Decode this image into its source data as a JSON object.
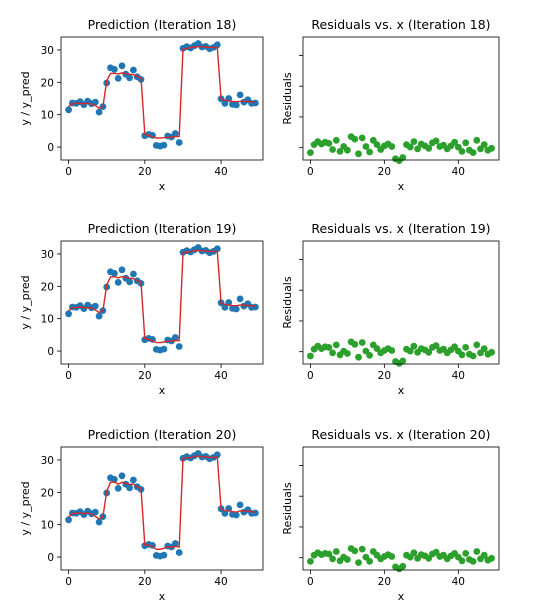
{
  "chart_data": [
    {
      "type": "scatter+line",
      "title": "Prediction (Iteration 18)",
      "xlabel": "x",
      "ylabel": "y / y_pred",
      "xlim": [
        -2,
        51
      ],
      "ylim": [
        -4,
        34
      ],
      "xticks": [
        0,
        20,
        40
      ],
      "yticks": [
        0,
        10,
        20,
        30
      ],
      "series": [
        {
          "kind": "points",
          "color": "#1f77b4",
          "x": [
            0,
            1,
            2,
            3,
            4,
            5,
            6,
            7,
            8,
            9,
            10,
            11,
            12,
            13,
            14,
            15,
            16,
            17,
            18,
            19,
            20,
            21,
            22,
            23,
            24,
            25,
            26,
            27,
            28,
            29,
            30,
            31,
            32,
            33,
            34,
            35,
            36,
            37,
            38,
            39,
            40,
            41,
            42,
            43,
            44,
            45,
            46,
            47,
            48,
            49
          ],
          "y": [
            11.5,
            13.6,
            13.5,
            14.0,
            13.1,
            14.2,
            13.4,
            13.9,
            10.8,
            12.5,
            19.8,
            24.5,
            24.0,
            21.2,
            25.1,
            22.5,
            21.4,
            23.8,
            21.7,
            20.9,
            3.5,
            3.9,
            3.6,
            0.5,
            0.3,
            0.6,
            3.4,
            3.1,
            4.2,
            1.4,
            30.5,
            31.0,
            30.6,
            31.3,
            32.0,
            30.9,
            31.1,
            30.4,
            30.8,
            31.6,
            14.9,
            13.5,
            15.0,
            13.2,
            13.0,
            16.1,
            13.9,
            14.6,
            13.5,
            13.6
          ]
        },
        {
          "kind": "line",
          "color": "#d62728",
          "x": [
            0,
            1,
            2,
            3,
            4,
            5,
            6,
            7,
            8,
            9,
            10,
            11,
            12,
            13,
            14,
            15,
            16,
            17,
            18,
            19,
            20,
            21,
            22,
            23,
            24,
            25,
            26,
            27,
            28,
            29,
            30,
            31,
            32,
            33,
            34,
            35,
            36,
            37,
            38,
            39,
            40,
            41,
            42,
            43,
            44,
            45,
            46,
            47,
            48,
            49
          ],
          "y": [
            12.5,
            13.4,
            13.5,
            13.5,
            13.4,
            13.5,
            13.3,
            12.8,
            12.0,
            12.4,
            20.5,
            22.7,
            22.8,
            22.6,
            22.9,
            22.7,
            22.5,
            22.4,
            21.8,
            21.4,
            4.0,
            3.6,
            3.2,
            2.8,
            2.8,
            2.9,
            3.0,
            3.1,
            3.2,
            3.3,
            30.2,
            30.5,
            30.7,
            30.9,
            31.0,
            31.0,
            30.9,
            30.8,
            30.8,
            30.8,
            14.8,
            14.5,
            14.3,
            14.1,
            14.0,
            14.1,
            14.2,
            14.1,
            14.0,
            13.9
          ]
        }
      ]
    },
    {
      "type": "scatter",
      "title": "Residuals vs. x (Iteration 18)",
      "xlabel": "x",
      "ylabel": "Residuals",
      "xlim": [
        -2,
        51
      ],
      "ylim": [
        -2,
        18
      ],
      "xticks": [
        0,
        20,
        40
      ],
      "series": [
        {
          "kind": "points",
          "color": "#2ca02c",
          "x": [
            0,
            1,
            2,
            3,
            4,
            5,
            6,
            7,
            8,
            9,
            10,
            11,
            12,
            13,
            14,
            15,
            16,
            17,
            18,
            19,
            20,
            21,
            22,
            23,
            24,
            25,
            26,
            27,
            28,
            29,
            30,
            31,
            32,
            33,
            34,
            35,
            36,
            37,
            38,
            39,
            40,
            41,
            42,
            43,
            44,
            45,
            46,
            47,
            48,
            49
          ],
          "y": [
            -0.8,
            0.5,
            1.0,
            0.6,
            0.9,
            0.7,
            -0.3,
            1.2,
            -0.6,
            0.2,
            -0.4,
            1.8,
            1.4,
            -1.0,
            1.6,
            0.2,
            -0.7,
            1.2,
            0.5,
            -0.3,
            0.3,
            0.6,
            0.2,
            -1.8,
            -2.1,
            -1.6,
            0.5,
            0.1,
            1.0,
            -0.2,
            0.6,
            0.3,
            -0.1,
            0.8,
            1.1,
            0.2,
            0.4,
            -0.2,
            0.3,
            0.9,
            0.1,
            -0.6,
            0.8,
            -0.4,
            -0.8,
            1.2,
            -0.2,
            0.5,
            -0.4,
            -0.1
          ]
        }
      ]
    },
    {
      "type": "scatter+line",
      "title": "Prediction (Iteration 19)",
      "xlabel": "x",
      "ylabel": "y / y_pred",
      "xlim": [
        -2,
        51
      ],
      "ylim": [
        -4,
        34
      ],
      "xticks": [
        0,
        20,
        40
      ],
      "yticks": [
        0,
        10,
        20,
        30
      ],
      "series": [
        {
          "kind": "points",
          "color": "#1f77b4",
          "x": [
            0,
            1,
            2,
            3,
            4,
            5,
            6,
            7,
            8,
            9,
            10,
            11,
            12,
            13,
            14,
            15,
            16,
            17,
            18,
            19,
            20,
            21,
            22,
            23,
            24,
            25,
            26,
            27,
            28,
            29,
            30,
            31,
            32,
            33,
            34,
            35,
            36,
            37,
            38,
            39,
            40,
            41,
            42,
            43,
            44,
            45,
            46,
            47,
            48,
            49
          ],
          "y": [
            11.5,
            13.6,
            13.5,
            14.0,
            13.1,
            14.2,
            13.4,
            13.9,
            10.8,
            12.5,
            19.8,
            24.5,
            24.0,
            21.2,
            25.1,
            22.5,
            21.4,
            23.8,
            21.7,
            20.9,
            3.5,
            3.9,
            3.6,
            0.5,
            0.3,
            0.6,
            3.4,
            3.1,
            4.2,
            1.4,
            30.5,
            31.0,
            30.6,
            31.3,
            32.0,
            30.9,
            31.1,
            30.4,
            30.8,
            31.6,
            14.9,
            13.5,
            15.0,
            13.2,
            13.0,
            16.1,
            13.9,
            14.6,
            13.5,
            13.6
          ]
        },
        {
          "kind": "line",
          "color": "#d62728",
          "x": [
            0,
            1,
            2,
            3,
            4,
            5,
            6,
            7,
            8,
            9,
            10,
            11,
            12,
            13,
            14,
            15,
            16,
            17,
            18,
            19,
            20,
            21,
            22,
            23,
            24,
            25,
            26,
            27,
            28,
            29,
            30,
            31,
            32,
            33,
            34,
            35,
            36,
            37,
            38,
            39,
            40,
            41,
            42,
            43,
            44,
            45,
            46,
            47,
            48,
            49
          ],
          "y": [
            12.4,
            13.4,
            13.5,
            13.6,
            13.4,
            13.5,
            13.3,
            12.7,
            11.9,
            12.4,
            20.4,
            22.9,
            23.0,
            22.6,
            23.0,
            22.8,
            22.5,
            22.4,
            21.7,
            21.3,
            3.9,
            3.6,
            3.2,
            2.6,
            2.6,
            2.8,
            3.0,
            3.1,
            3.2,
            3.2,
            30.3,
            30.6,
            30.7,
            31.0,
            31.1,
            31.0,
            30.9,
            30.8,
            30.8,
            30.9,
            14.8,
            14.4,
            14.3,
            14.0,
            14.0,
            14.2,
            14.2,
            14.1,
            14.0,
            13.9
          ]
        }
      ]
    },
    {
      "type": "scatter",
      "title": "Residuals vs. x (Iteration 19)",
      "xlabel": "x",
      "ylabel": "Residuals",
      "xlim": [
        -2,
        51
      ],
      "ylim": [
        -2,
        18
      ],
      "xticks": [
        0,
        20,
        40
      ],
      "series": [
        {
          "kind": "points",
          "color": "#2ca02c",
          "x": [
            0,
            1,
            2,
            3,
            4,
            5,
            6,
            7,
            8,
            9,
            10,
            11,
            12,
            13,
            14,
            15,
            16,
            17,
            18,
            19,
            20,
            21,
            22,
            23,
            24,
            25,
            26,
            27,
            28,
            29,
            30,
            31,
            32,
            33,
            34,
            35,
            36,
            37,
            38,
            39,
            40,
            41,
            42,
            43,
            44,
            45,
            46,
            47,
            48,
            49
          ],
          "y": [
            -0.7,
            0.4,
            0.9,
            0.5,
            0.8,
            0.7,
            -0.2,
            1.1,
            -0.5,
            0.1,
            -0.3,
            1.6,
            1.2,
            -0.9,
            1.5,
            0.1,
            -0.6,
            1.1,
            0.5,
            -0.2,
            0.2,
            0.5,
            0.2,
            -1.6,
            -1.9,
            -1.5,
            0.4,
            0.1,
            0.9,
            -0.1,
            0.5,
            0.3,
            -0.1,
            0.7,
            1.0,
            0.2,
            0.4,
            -0.2,
            0.3,
            0.8,
            0.1,
            -0.5,
            0.7,
            -0.4,
            -0.7,
            1.1,
            -0.2,
            0.5,
            -0.4,
            -0.1
          ]
        }
      ]
    },
    {
      "type": "scatter+line",
      "title": "Prediction (Iteration 20)",
      "xlabel": "x",
      "ylabel": "y / y_pred",
      "xlim": [
        -2,
        51
      ],
      "ylim": [
        -4,
        34
      ],
      "xticks": [
        0,
        20,
        40
      ],
      "yticks": [
        0,
        10,
        20,
        30
      ],
      "series": [
        {
          "kind": "points",
          "color": "#1f77b4",
          "x": [
            0,
            1,
            2,
            3,
            4,
            5,
            6,
            7,
            8,
            9,
            10,
            11,
            12,
            13,
            14,
            15,
            16,
            17,
            18,
            19,
            20,
            21,
            22,
            23,
            24,
            25,
            26,
            27,
            28,
            29,
            30,
            31,
            32,
            33,
            34,
            35,
            36,
            37,
            38,
            39,
            40,
            41,
            42,
            43,
            44,
            45,
            46,
            47,
            48,
            49
          ],
          "y": [
            11.5,
            13.6,
            13.5,
            14.0,
            13.1,
            14.2,
            13.4,
            13.9,
            10.8,
            12.5,
            19.8,
            24.5,
            24.0,
            21.2,
            25.1,
            22.5,
            21.4,
            23.8,
            21.7,
            20.9,
            3.5,
            3.9,
            3.6,
            0.5,
            0.3,
            0.6,
            3.4,
            3.1,
            4.2,
            1.4,
            30.5,
            31.0,
            30.6,
            31.3,
            32.0,
            30.9,
            31.1,
            30.4,
            30.8,
            31.6,
            14.9,
            13.5,
            15.0,
            13.2,
            13.0,
            16.1,
            13.9,
            14.6,
            13.5,
            13.6
          ]
        },
        {
          "kind": "line",
          "color": "#d62728",
          "x": [
            0,
            1,
            2,
            3,
            4,
            5,
            6,
            7,
            8,
            9,
            10,
            11,
            12,
            13,
            14,
            15,
            16,
            17,
            18,
            19,
            20,
            21,
            22,
            23,
            24,
            25,
            26,
            27,
            28,
            29,
            30,
            31,
            32,
            33,
            34,
            35,
            36,
            37,
            38,
            39,
            40,
            41,
            42,
            43,
            44,
            45,
            46,
            47,
            48,
            49
          ],
          "y": [
            12.3,
            13.5,
            13.5,
            13.7,
            13.4,
            13.6,
            13.3,
            12.6,
            11.8,
            12.4,
            20.3,
            23.1,
            23.2,
            22.5,
            23.1,
            22.8,
            22.4,
            22.5,
            21.7,
            21.2,
            3.8,
            3.7,
            3.3,
            2.4,
            2.4,
            2.7,
            3.1,
            3.1,
            3.3,
            3.1,
            30.4,
            30.7,
            30.7,
            31.1,
            31.2,
            31.0,
            30.9,
            30.8,
            30.8,
            31.0,
            14.8,
            14.3,
            14.4,
            14.0,
            13.9,
            14.3,
            14.2,
            14.2,
            14.0,
            13.9
          ]
        }
      ]
    },
    {
      "type": "scatter",
      "title": "Residuals vs. x (Iteration 20)",
      "xlabel": "x",
      "ylabel": "Residuals",
      "xlim": [
        -2,
        51
      ],
      "ylim": [
        -2,
        18
      ],
      "xticks": [
        0,
        20,
        40
      ],
      "series": [
        {
          "kind": "points",
          "color": "#2ca02c",
          "x": [
            0,
            1,
            2,
            3,
            4,
            5,
            6,
            7,
            8,
            9,
            10,
            11,
            12,
            13,
            14,
            15,
            16,
            17,
            18,
            19,
            20,
            21,
            22,
            23,
            24,
            25,
            26,
            27,
            28,
            29,
            30,
            31,
            32,
            33,
            34,
            35,
            36,
            37,
            38,
            39,
            40,
            41,
            42,
            43,
            44,
            45,
            46,
            47,
            48,
            49
          ],
          "y": [
            -0.6,
            0.4,
            0.8,
            0.5,
            0.7,
            0.6,
            -0.2,
            1.0,
            -0.5,
            0.1,
            -0.3,
            1.5,
            1.1,
            -0.8,
            1.4,
            0.1,
            -0.6,
            1.0,
            0.4,
            -0.2,
            0.2,
            0.5,
            0.2,
            -1.5,
            -1.8,
            -1.4,
            0.4,
            0.1,
            0.8,
            -0.1,
            0.5,
            0.3,
            -0.1,
            0.6,
            0.9,
            0.2,
            0.4,
            -0.2,
            0.3,
            0.7,
            0.1,
            -0.5,
            0.7,
            -0.3,
            -0.6,
            1.0,
            -0.2,
            0.4,
            -0.4,
            -0.1
          ]
        }
      ]
    }
  ]
}
